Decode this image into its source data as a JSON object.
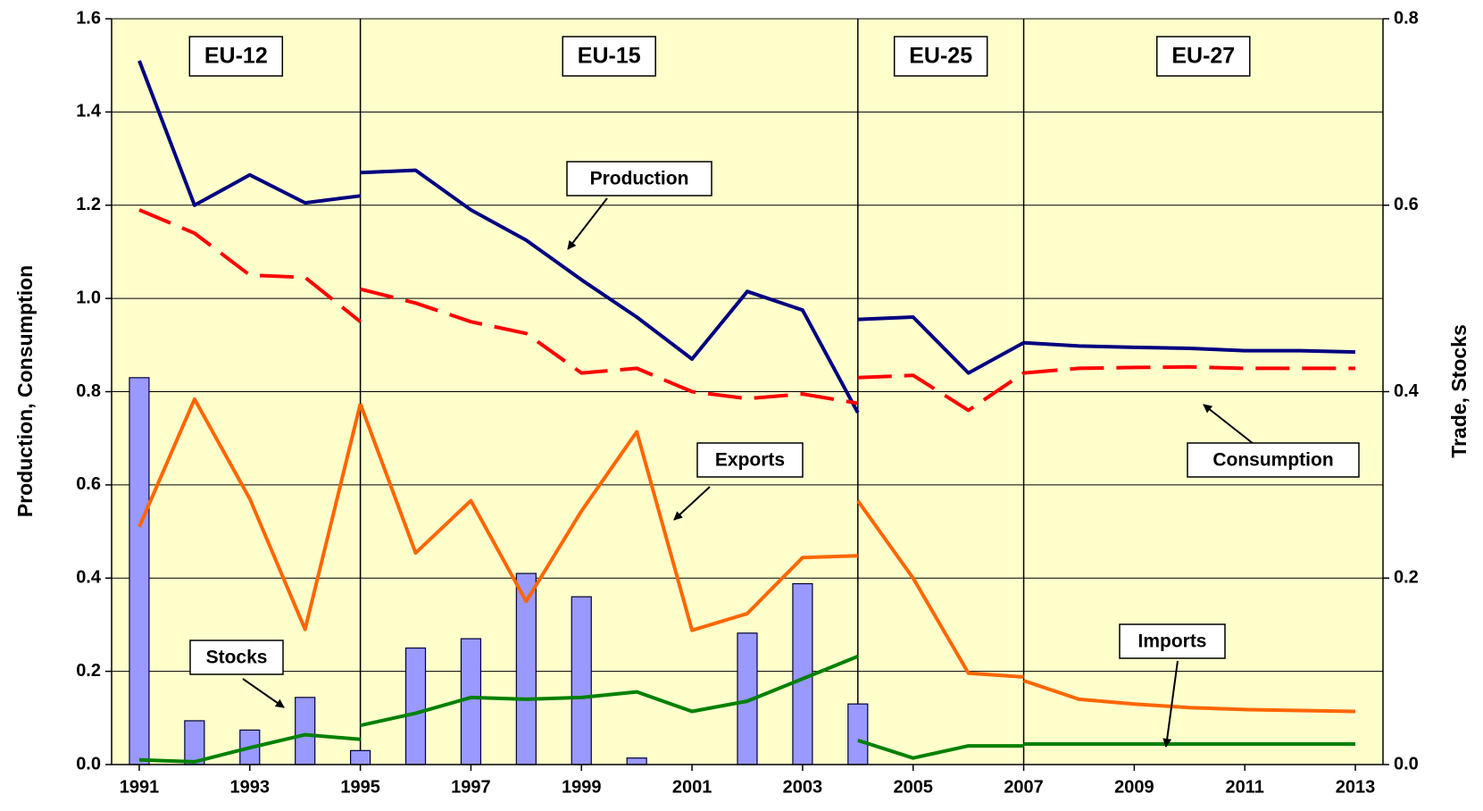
{
  "chart_data": {
    "type": "bar-line",
    "xlim": [
      1990.5,
      2013.5
    ],
    "xticks": [
      1991,
      1993,
      1995,
      1997,
      1999,
      2001,
      2003,
      2005,
      2007,
      2009,
      2011,
      2013
    ],
    "ylim": [
      0,
      1.6
    ],
    "yticks": [
      {
        "value": 0,
        "label": "0.0"
      },
      0.2,
      0.4,
      0.6,
      0.8,
      {
        "value": 1,
        "label": "1.0"
      },
      1.2,
      1.4,
      1.6
    ],
    "y2lim": [
      0,
      0.8
    ],
    "y2ticks": [
      {
        "value": 0,
        "label": "0.0"
      },
      0.2,
      0.4,
      0.6,
      0.8
    ],
    "ylabel": "Production, Consumption",
    "y2label": "Trade, Stocks",
    "grid": true,
    "background": "#ffffcc",
    "dividers": [
      1995,
      2004,
      2007
    ],
    "region_labels": [
      "EU-12",
      "EU-15",
      "EU-25",
      "EU-27"
    ],
    "series": [
      {
        "name": "Stocks",
        "type": "bar",
        "axis": "y2",
        "color": "#9999ff",
        "x": [
          1991,
          1992,
          1993,
          1994,
          1995,
          1996,
          1997,
          1998,
          1999,
          2000,
          2001,
          2002,
          2003,
          2004
        ],
        "values": [
          0.415,
          0.047,
          0.037,
          0.072,
          0.015,
          0.125,
          0.135,
          0.205,
          0.18,
          0.007,
          null,
          0.141,
          0.194,
          0.065
        ]
      },
      {
        "name": "Production",
        "type": "line",
        "axis": "y",
        "color": "#000080",
        "dashed": false,
        "x": [
          1991,
          1992,
          1993,
          1994,
          1995,
          1995,
          1996,
          1997,
          1998,
          1999,
          2000,
          2001,
          2002,
          2003,
          2004,
          2004,
          2005,
          2006,
          2007,
          2007,
          2008,
          2009,
          2010,
          2011,
          2012,
          2013
        ],
        "values": [
          1.51,
          1.2,
          1.265,
          1.205,
          1.22,
          1.27,
          1.275,
          1.19,
          1.125,
          1.04,
          0.96,
          0.87,
          1.015,
          0.975,
          0.755,
          0.955,
          0.96,
          0.84,
          0.905,
          0.905,
          0.898,
          0.895,
          0.893,
          0.888,
          0.888,
          0.885
        ]
      },
      {
        "name": "Consumption",
        "type": "line",
        "axis": "y",
        "color": "#ff0000",
        "dashed": true,
        "x": [
          1991,
          1992,
          1993,
          1994,
          1995,
          1995,
          1996,
          1997,
          1998,
          1999,
          2000,
          2001,
          2002,
          2003,
          2004,
          2004,
          2005,
          2006,
          2007,
          2007,
          2008,
          2009,
          2010,
          2011,
          2012,
          2013
        ],
        "values": [
          1.19,
          1.14,
          1.05,
          1.045,
          0.95,
          1.02,
          0.99,
          0.95,
          0.925,
          0.84,
          0.85,
          0.8,
          0.785,
          0.795,
          0.775,
          0.83,
          0.835,
          0.76,
          0.84,
          0.84,
          0.85,
          0.852,
          0.853,
          0.85,
          0.85,
          0.85
        ]
      },
      {
        "name": "Exports",
        "type": "line",
        "axis": "y2",
        "color": "#ff6600",
        "dashed": false,
        "x": [
          1991,
          1992,
          1993,
          1994,
          1995,
          1995,
          1996,
          1997,
          1998,
          1999,
          2000,
          2001,
          2002,
          2003,
          2004,
          2004,
          2005,
          2006,
          2007,
          2007,
          2008,
          2009,
          2010,
          2011,
          2012,
          2013
        ],
        "values": [
          0.255,
          0.392,
          0.285,
          0.145,
          0.387,
          0.387,
          0.227,
          0.283,
          0.175,
          0.272,
          0.357,
          0.144,
          0.162,
          0.222,
          0.224,
          0.283,
          0.2,
          0.098,
          0.094,
          0.09,
          0.07,
          0.065,
          0.061,
          0.059,
          0.058,
          0.057
        ]
      },
      {
        "name": "Imports",
        "type": "line",
        "axis": "y2",
        "color": "#008000",
        "dashed": false,
        "x": [
          1991,
          1992,
          1993,
          1994,
          1995,
          1995,
          1996,
          1997,
          1998,
          1999,
          2000,
          2001,
          2002,
          2003,
          2004,
          2004,
          2005,
          2006,
          2007,
          2007,
          2008,
          2009,
          2010,
          2011,
          2012,
          2013
        ],
        "values": [
          0.005,
          0.003,
          0.018,
          0.032,
          0.027,
          0.042,
          0.055,
          0.072,
          0.07,
          0.072,
          0.078,
          0.057,
          0.068,
          0.092,
          0.116,
          0.026,
          0.007,
          0.02,
          0.02,
          0.022,
          0.022,
          0.022,
          0.022,
          0.022,
          0.022,
          0.022
        ]
      }
    ]
  }
}
